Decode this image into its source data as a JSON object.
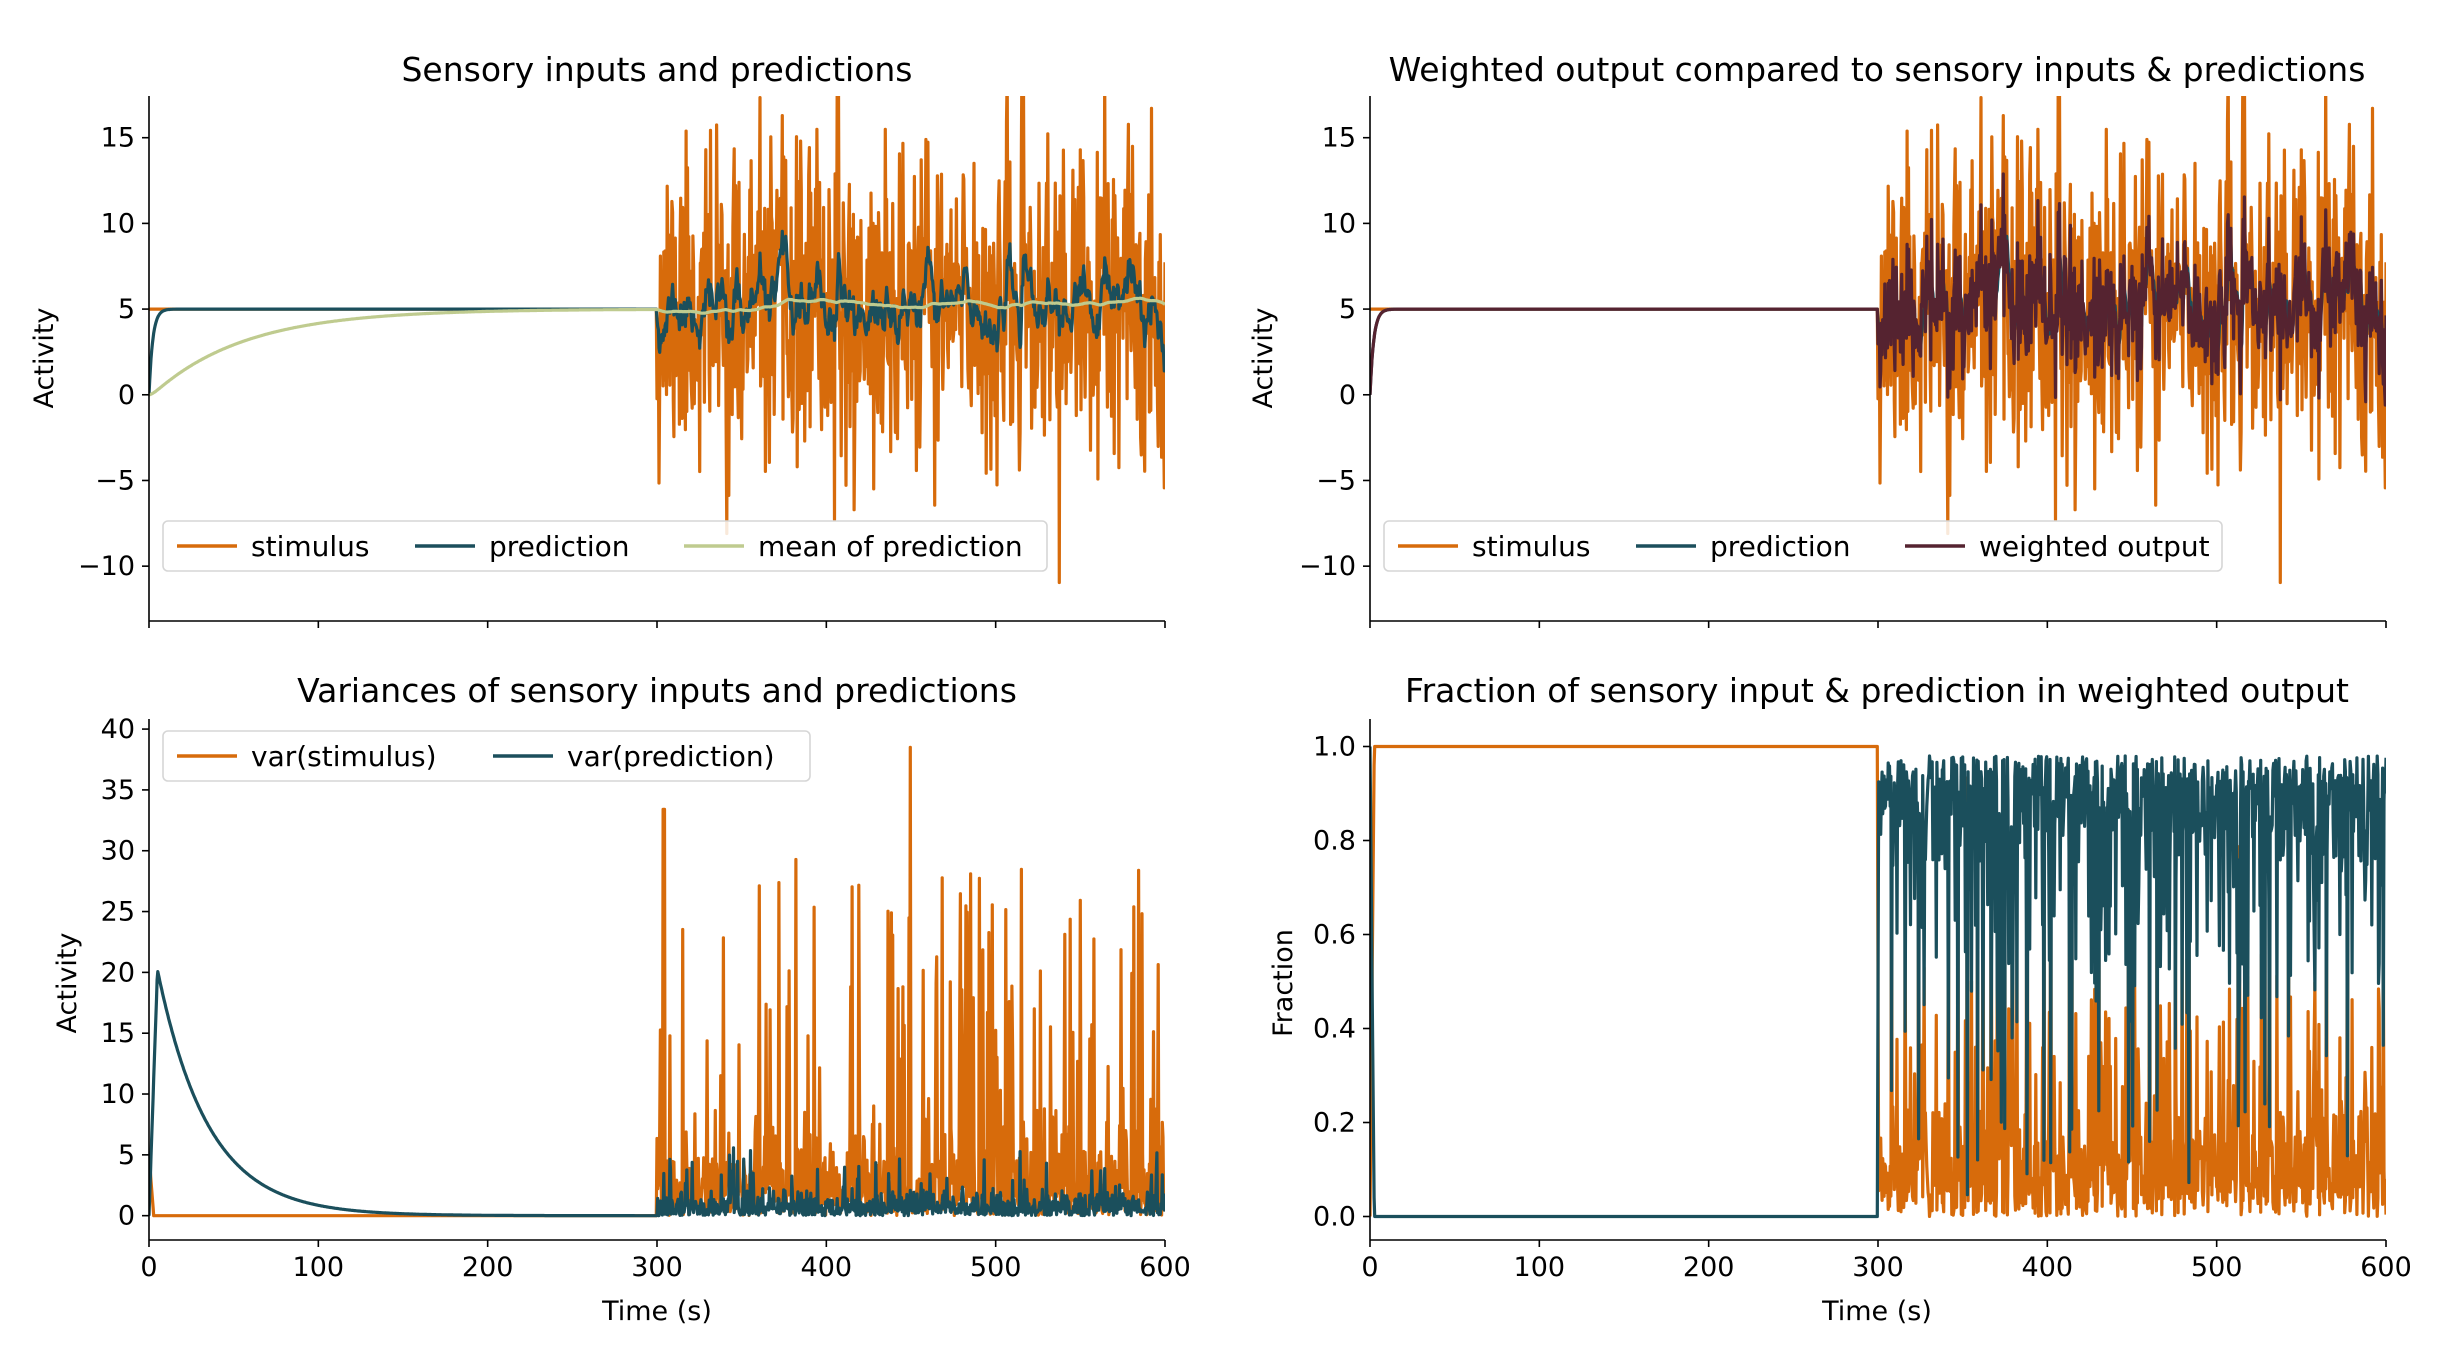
{
  "colors": {
    "stimulus": "#D76B0B",
    "prediction": "#1B4F5C",
    "mean_of_prediction": "#BFCB8F",
    "weighted_output": "#552330"
  },
  "chart_data": [
    {
      "type": "line",
      "title": "Sensory inputs and predictions",
      "xlabel": "",
      "ylabel": "Activity",
      "xlim": [
        0,
        600
      ],
      "ylim": [
        -13.2,
        17.2
      ],
      "xticks": [
        0,
        100,
        200,
        300,
        400,
        500,
        600
      ],
      "xtick_labels": [
        "",
        "",
        "",
        "",
        "",
        "",
        ""
      ],
      "yticks": [
        -10,
        -5,
        0,
        5,
        10,
        15
      ],
      "ytick_labels": [
        "−10",
        "−5",
        "0",
        "5",
        "10",
        "15"
      ],
      "legend": {
        "placement": "lower-left",
        "columns": 3,
        "entries": [
          "stimulus",
          "prediction",
          "mean of prediction"
        ]
      },
      "series": [
        {
          "name": "stimulus",
          "color_key": "stimulus",
          "generator": "noisy-stimulus",
          "baseline": 5,
          "switch_at": 300,
          "std": 5,
          "seed": 11
        },
        {
          "name": "prediction",
          "color_key": "prediction",
          "generator": "fast-rise-then-tracking",
          "target": 5,
          "switch_at": 300,
          "seed": 11
        },
        {
          "name": "mean of prediction",
          "color_key": "mean_of_prediction",
          "generator": "slow-rise-mean",
          "target": 5,
          "tau": 60,
          "seed": 11
        }
      ]
    },
    {
      "type": "line",
      "title": "Weighted output compared to sensory inputs & predictions",
      "xlabel": "",
      "ylabel": "Activity",
      "xlim": [
        0,
        600
      ],
      "ylim": [
        -13.2,
        17.2
      ],
      "xticks": [
        0,
        100,
        200,
        300,
        400,
        500,
        600
      ],
      "xtick_labels": [
        "",
        "",
        "",
        "",
        "",
        "",
        ""
      ],
      "yticks": [
        -10,
        -5,
        0,
        5,
        10,
        15
      ],
      "ytick_labels": [
        "−10",
        "−5",
        "0",
        "5",
        "10",
        "15"
      ],
      "legend": {
        "placement": "lower-left",
        "columns": 3,
        "entries": [
          "stimulus",
          "prediction",
          "weighted output"
        ]
      },
      "series": [
        {
          "name": "stimulus",
          "color_key": "stimulus",
          "generator": "noisy-stimulus",
          "baseline": 5,
          "switch_at": 300,
          "std": 5,
          "seed": 11
        },
        {
          "name": "prediction",
          "color_key": "prediction",
          "generator": "fast-rise-then-tracking",
          "target": 5,
          "switch_at": 300,
          "seed": 11
        },
        {
          "name": "weighted output",
          "color_key": "weighted_output",
          "generator": "weighted-output",
          "target": 5,
          "switch_at": 300,
          "seed": 11
        }
      ]
    },
    {
      "type": "line",
      "title": "Variances of sensory inputs and predictions",
      "xlabel": "Time (s)",
      "ylabel": "Activity",
      "xlim": [
        0,
        600
      ],
      "ylim": [
        -2,
        40.5
      ],
      "xticks": [
        0,
        100,
        200,
        300,
        400,
        500,
        600
      ],
      "xtick_labels": [
        "0",
        "100",
        "200",
        "300",
        "400",
        "500",
        "600"
      ],
      "yticks": [
        0,
        5,
        10,
        15,
        20,
        25,
        30,
        35,
        40
      ],
      "ytick_labels": [
        "0",
        "5",
        "10",
        "15",
        "20",
        "25",
        "30",
        "35",
        "40"
      ],
      "legend": {
        "placement": "upper-left",
        "columns": 2,
        "entries": [
          "var(stimulus)",
          "var(prediction)"
        ]
      },
      "annotations": {
        "var_prediction_peak": {
          "x": 5,
          "y": 20.2
        },
        "var_stimulus_max": {
          "x": 450,
          "y": 38.5
        }
      },
      "series": [
        {
          "name": "var(stimulus)",
          "color_key": "stimulus",
          "generator": "variance-stimulus",
          "switch_at": 300,
          "seed": 23
        },
        {
          "name": "var(prediction)",
          "color_key": "prediction",
          "generator": "variance-prediction",
          "peak": 20.2,
          "peak_at": 5,
          "switch_at": 300,
          "seed": 23
        }
      ]
    },
    {
      "type": "line",
      "title": "Fraction of sensory input & prediction in weighted output",
      "xlabel": "Time (s)",
      "ylabel": "Fraction",
      "xlim": [
        0,
        600
      ],
      "ylim": [
        -0.05,
        1.05
      ],
      "xticks": [
        0,
        100,
        200,
        300,
        400,
        500,
        600
      ],
      "xtick_labels": [
        "0",
        "100",
        "200",
        "300",
        "400",
        "500",
        "600"
      ],
      "yticks": [
        0,
        0.2,
        0.4,
        0.6,
        0.8,
        1.0
      ],
      "ytick_labels": [
        "0.0",
        "0.2",
        "0.4",
        "0.6",
        "0.8",
        "1.0"
      ],
      "legend": null,
      "series": [
        {
          "name": "",
          "color_key": "stimulus",
          "generator": "fraction-stimulus",
          "switch_at": 300,
          "seed": 37
        },
        {
          "name": "",
          "color_key": "prediction",
          "generator": "fraction-prediction",
          "switch_at": 300,
          "seed": 37
        }
      ]
    }
  ]
}
